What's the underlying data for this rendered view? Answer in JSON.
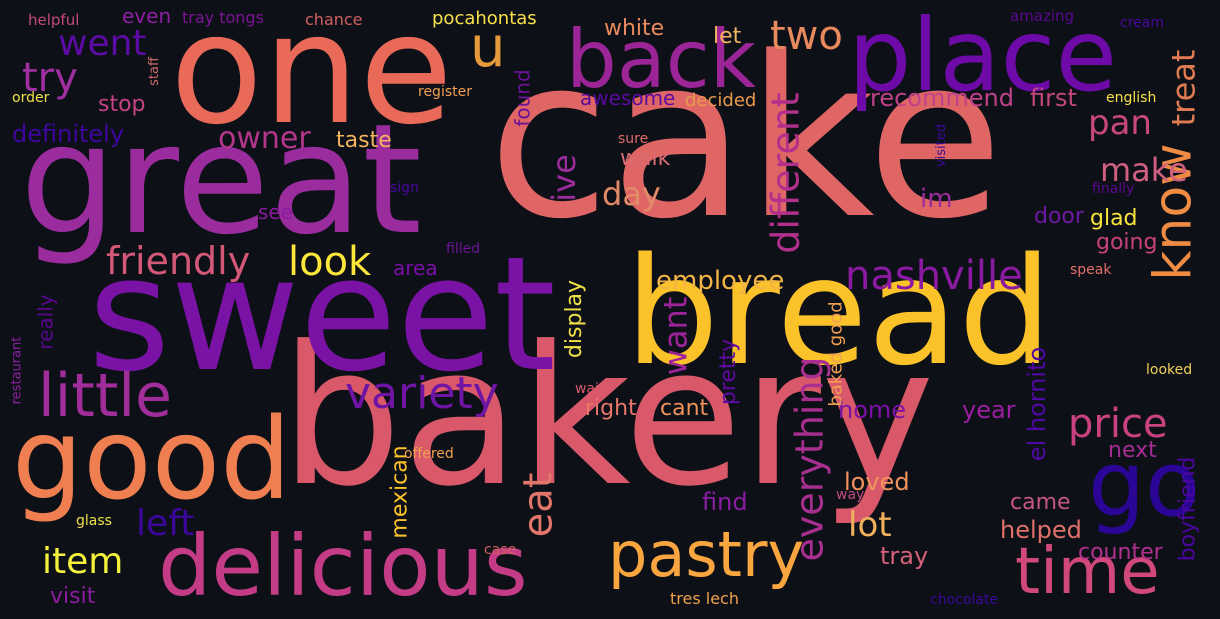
{
  "background": "#0d1117",
  "words": [
    {
      "text": "cake",
      "color": "#e06666"
    },
    {
      "text": "bakery",
      "color": "#d9596a"
    },
    {
      "text": "bread",
      "color": "#fcc22a"
    },
    {
      "text": "sweet",
      "color": "#7a12a6"
    },
    {
      "text": "great",
      "color": "#9a2c9e"
    },
    {
      "text": "one",
      "color": "#ea6a5a"
    },
    {
      "text": "place",
      "color": "#6e0aa8"
    },
    {
      "text": "good",
      "color": "#ef7f50"
    },
    {
      "text": "back",
      "color": "#9b2597"
    },
    {
      "text": "delicious",
      "color": "#c43c86"
    },
    {
      "text": "pastry",
      "color": "#f9a540"
    },
    {
      "text": "time",
      "color": "#d1487a"
    },
    {
      "text": "little",
      "color": "#a02d99"
    },
    {
      "text": "go",
      "color": "#2a0596"
    },
    {
      "text": "know",
      "color": "#f08b44"
    },
    {
      "text": "nashville",
      "color": "#8b1aa3"
    },
    {
      "text": "variety",
      "color": "#7014a5"
    },
    {
      "text": "friendly",
      "color": "#d45878"
    },
    {
      "text": "look",
      "color": "#fce63a"
    },
    {
      "text": "price",
      "color": "#c9417e"
    },
    {
      "text": "different",
      "color": "#b2308c"
    },
    {
      "text": "everything",
      "color": "#a82f90"
    },
    {
      "text": "eat",
      "color": "#e3766a"
    },
    {
      "text": "two",
      "color": "#e88a5d"
    },
    {
      "text": "went",
      "color": "#5d0ba5"
    },
    {
      "text": "try",
      "color": "#9f2fa0"
    },
    {
      "text": "u",
      "color": "#e69a3c"
    },
    {
      "text": "treat",
      "color": "#e07b52"
    },
    {
      "text": "make",
      "color": "#d05f80"
    },
    {
      "text": "lot",
      "color": "#f1b15c"
    },
    {
      "text": "item",
      "color": "#f4f03c"
    },
    {
      "text": "left",
      "color": "#3a079a"
    },
    {
      "text": "pan",
      "color": "#c8487c"
    },
    {
      "text": "want",
      "color": "#9e2399"
    },
    {
      "text": "day",
      "color": "#e38a68"
    },
    {
      "text": "ive",
      "color": "#9c2b9b"
    },
    {
      "text": "owner",
      "color": "#b3368a"
    },
    {
      "text": "employee",
      "color": "#f4b445"
    },
    {
      "text": "definitely",
      "color": "#3e069f"
    },
    {
      "text": "recommend",
      "color": "#c0428a"
    },
    {
      "text": "first",
      "color": "#c4467f"
    },
    {
      "text": "home",
      "color": "#7c11a7"
    },
    {
      "text": "year",
      "color": "#9b1ea0"
    },
    {
      "text": "el hornito",
      "color": "#4f08a2"
    },
    {
      "text": "boyfriend",
      "color": "#4a069f"
    },
    {
      "text": "counter",
      "color": "#b2318e"
    },
    {
      "text": "helped",
      "color": "#e0706a"
    },
    {
      "text": "came",
      "color": "#c65584"
    },
    {
      "text": "next",
      "color": "#a62b93"
    },
    {
      "text": "loved",
      "color": "#f0935c"
    },
    {
      "text": "tray",
      "color": "#d5607a"
    },
    {
      "text": "find",
      "color": "#8a1ea2"
    },
    {
      "text": "visit",
      "color": "#8b1c9d"
    },
    {
      "text": "stop",
      "color": "#c64284"
    },
    {
      "text": "taste",
      "color": "#f3b45e"
    },
    {
      "text": "walk",
      "color": "#d96b72"
    },
    {
      "text": "glad",
      "color": "#f8e43c"
    },
    {
      "text": "going",
      "color": "#c8417f"
    },
    {
      "text": "door",
      "color": "#6d18a2"
    },
    {
      "text": "im",
      "color": "#9c2b9b"
    },
    {
      "text": "right",
      "color": "#e8766a"
    },
    {
      "text": "cant",
      "color": "#f0935c"
    },
    {
      "text": "pretty",
      "color": "#5f0a9f"
    },
    {
      "text": "display",
      "color": "#f0e04a"
    },
    {
      "text": "mexican",
      "color": "#fcc22a"
    },
    {
      "text": "baked good",
      "color": "#f0a050"
    },
    {
      "text": "area",
      "color": "#7b0fa6"
    },
    {
      "text": "really",
      "color": "#5a078f"
    },
    {
      "text": "see",
      "color": "#8a1a9e"
    },
    {
      "text": "let",
      "color": "#f1b35f"
    },
    {
      "text": "white",
      "color": "#e88a5d"
    },
    {
      "text": "awesome",
      "color": "#5a0a9f"
    },
    {
      "text": "decided",
      "color": "#e89a4c"
    },
    {
      "text": "found",
      "color": "#6a1295"
    },
    {
      "text": "even",
      "color": "#8c1fa1"
    },
    {
      "text": "pocahontas",
      "color": "#f8e04a"
    },
    {
      "text": "tray tongs",
      "color": "#7c1395"
    },
    {
      "text": "chance",
      "color": "#d06060"
    },
    {
      "text": "helpful",
      "color": "#c04a80"
    },
    {
      "text": "amazing",
      "color": "#5a078f"
    },
    {
      "text": "cream",
      "color": "#4a069f"
    },
    {
      "text": "staff",
      "color": "#d06a6a"
    },
    {
      "text": "order",
      "color": "#f0e04a"
    },
    {
      "text": "register",
      "color": "#f0a050"
    },
    {
      "text": "english",
      "color": "#f8e04a"
    },
    {
      "text": "sure",
      "color": "#e06a6a"
    },
    {
      "text": "visited",
      "color": "#3a089a"
    },
    {
      "text": "finally",
      "color": "#5a078f"
    },
    {
      "text": "sign",
      "color": "#4a069f"
    },
    {
      "text": "filled",
      "color": "#6a1295"
    },
    {
      "text": "speak",
      "color": "#e0706a"
    },
    {
      "text": "looked",
      "color": "#f0d05a"
    },
    {
      "text": "restaurant",
      "color": "#8c1fa1"
    },
    {
      "text": "wait",
      "color": "#d9596a"
    },
    {
      "text": "offered",
      "color": "#f0a050"
    },
    {
      "text": "way",
      "color": "#c04a80"
    },
    {
      "text": "glass",
      "color": "#f0e04a"
    },
    {
      "text": "case",
      "color": "#d06060"
    },
    {
      "text": "tres lech",
      "color": "#f0a050"
    },
    {
      "text": "chocolate",
      "color": "#3a079a"
    }
  ]
}
